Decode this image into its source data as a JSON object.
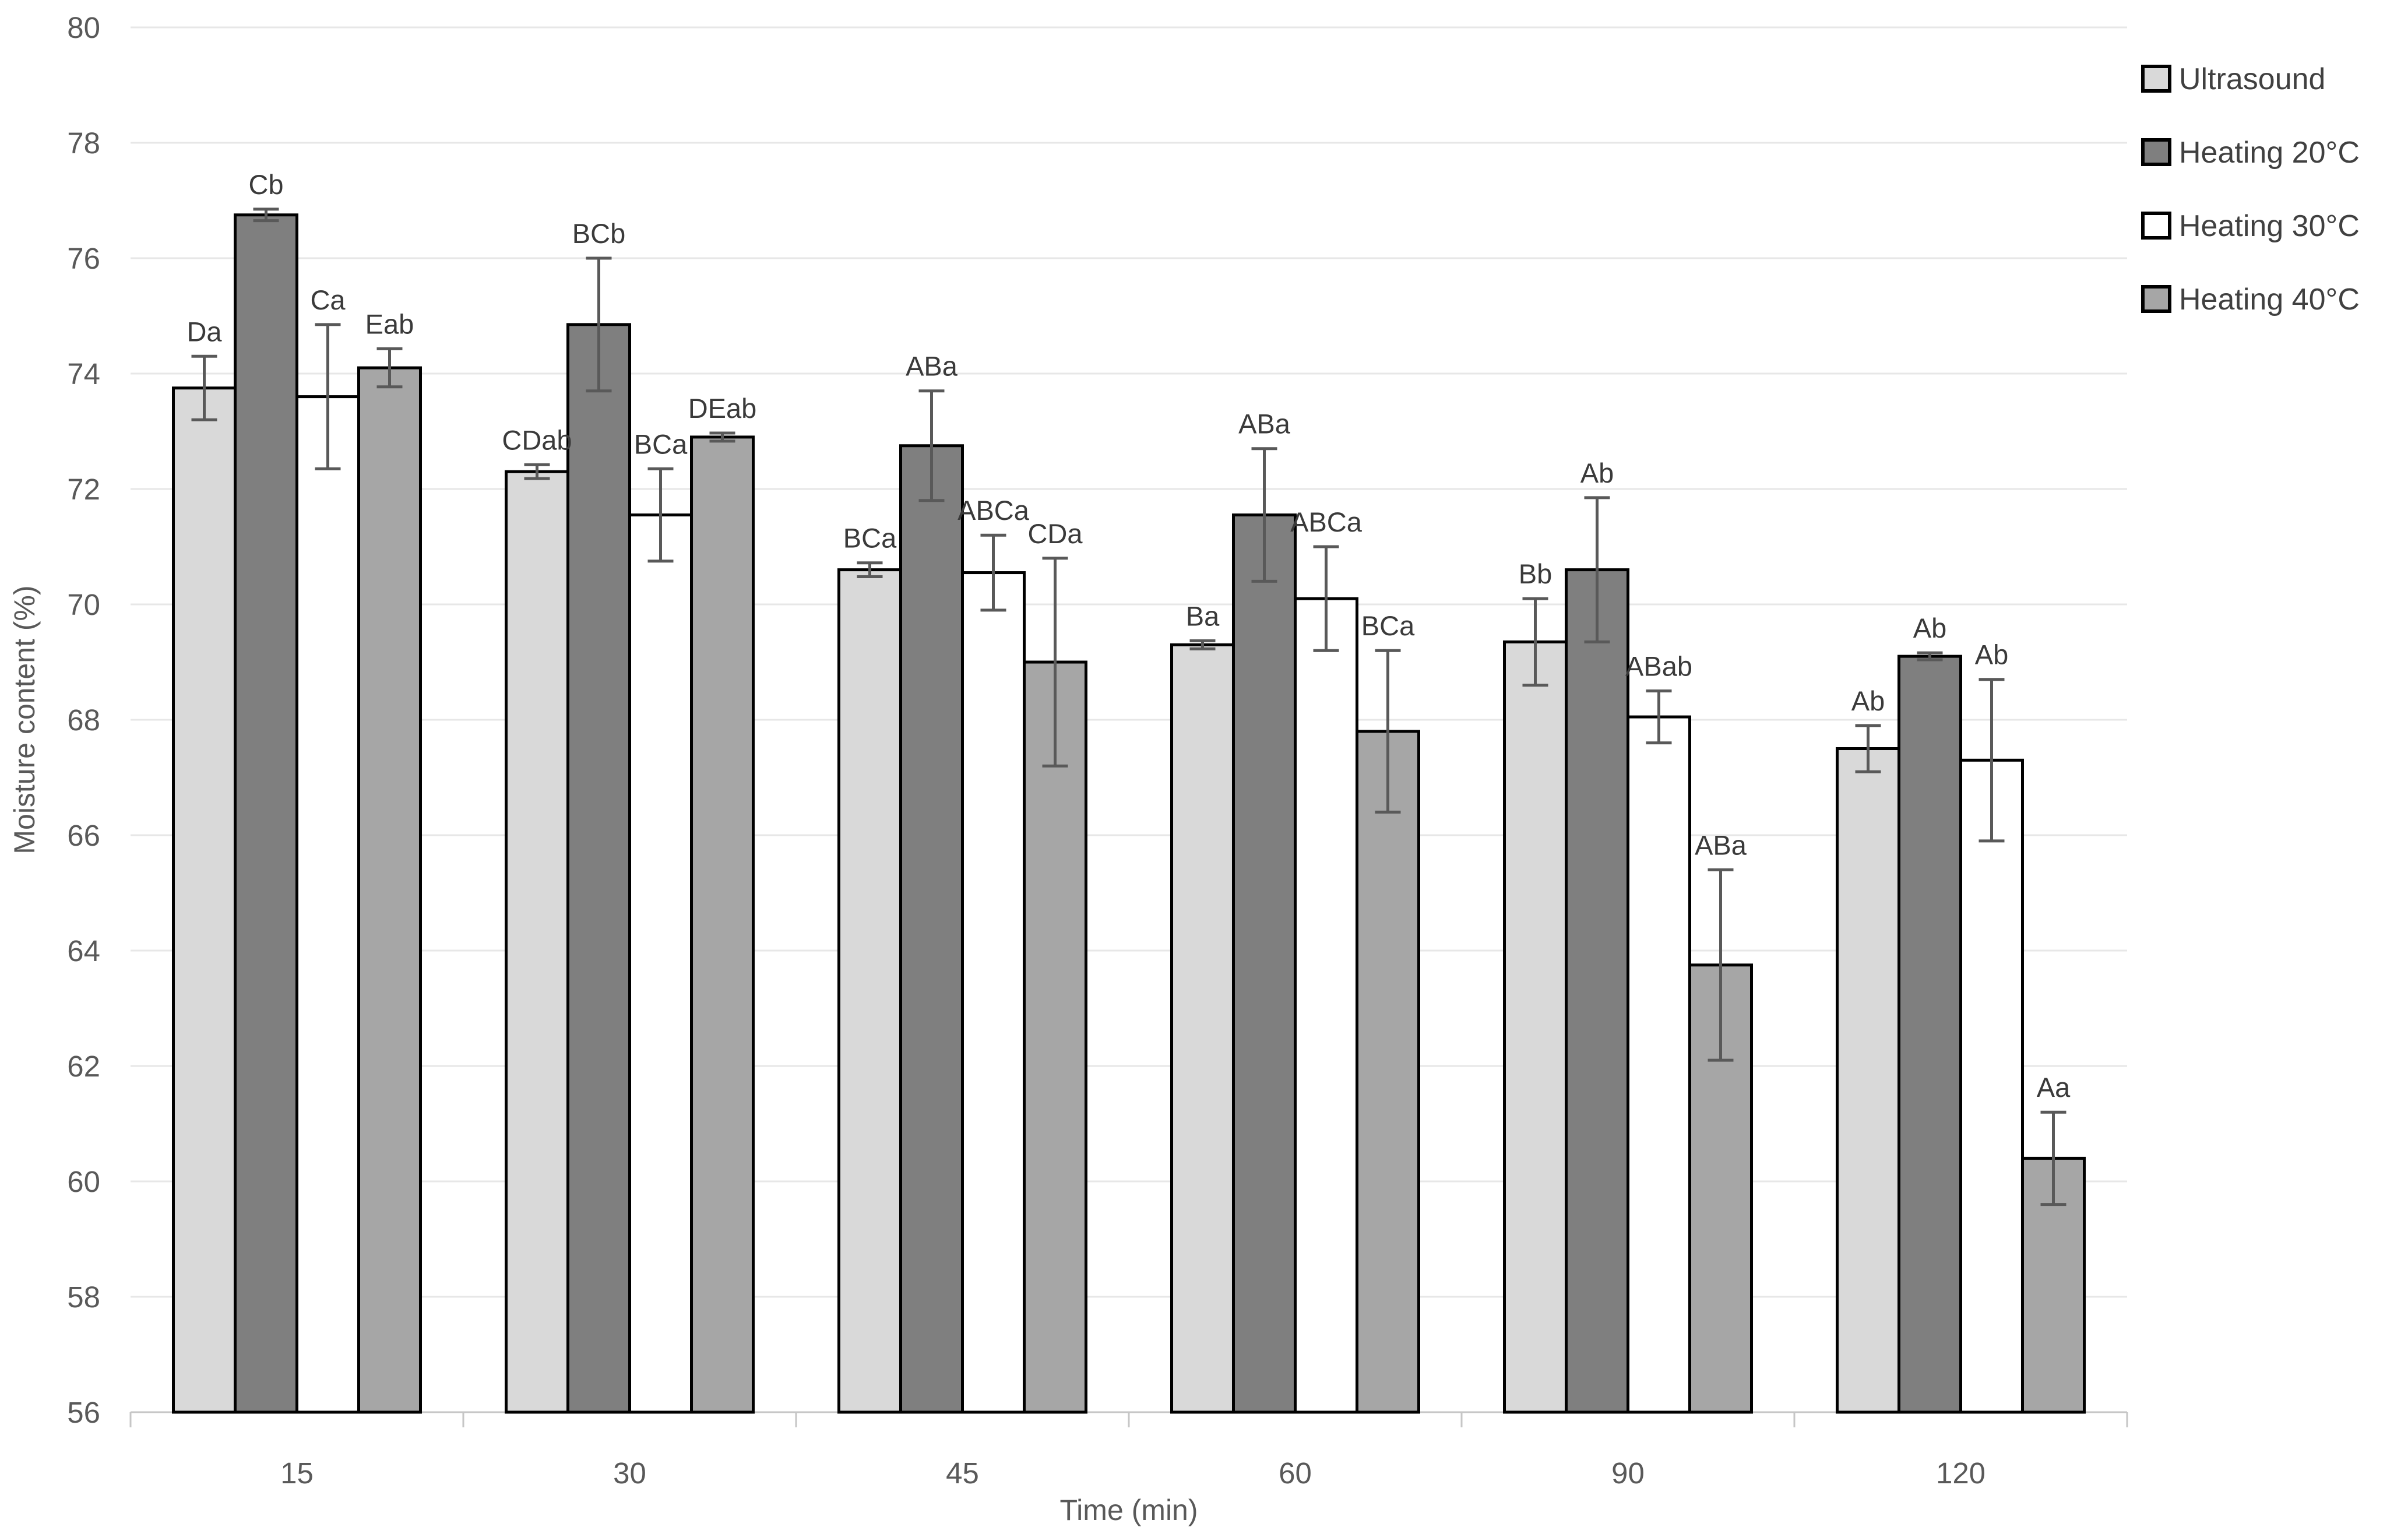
{
  "chart_data": {
    "type": "bar",
    "title": "",
    "xlabel": "Time (min)",
    "ylabel": "Moisture content (%)",
    "categories": [
      "15",
      "30",
      "45",
      "60",
      "90",
      "120"
    ],
    "ylim": [
      56,
      80
    ],
    "ytick_step": 2,
    "grid": true,
    "legend_position": "right",
    "series": [
      {
        "name": "Ultrasound",
        "color": "#d9d9d9",
        "values": [
          73.75,
          72.3,
          70.6,
          69.3,
          69.35,
          67.5
        ],
        "errors": [
          0.55,
          0.12,
          0.12,
          0.07,
          0.75,
          0.4
        ],
        "labels": [
          "Da",
          "CDab",
          "BCa",
          "Ba",
          "Bb",
          "Ab"
        ]
      },
      {
        "name": "Heating 20°C",
        "color": "#7f7f7f",
        "values": [
          76.75,
          74.85,
          72.75,
          71.55,
          70.6,
          69.1
        ],
        "errors": [
          0.1,
          1.15,
          0.95,
          1.15,
          1.25,
          0.06
        ],
        "labels": [
          "Cb",
          "BCb",
          "ABa",
          "ABa",
          "Ab",
          "Ab"
        ]
      },
      {
        "name": "Heating 30°C",
        "color": "#ffffff",
        "values": [
          73.6,
          71.55,
          70.55,
          70.1,
          68.05,
          67.3
        ],
        "errors": [
          1.25,
          0.8,
          0.65,
          0.9,
          0.45,
          1.4
        ],
        "labels": [
          "Ca",
          "BCa",
          "ABCa",
          "ABCa",
          "ABab",
          "Ab"
        ]
      },
      {
        "name": "Heating 40°C",
        "color": "#a6a6a6",
        "values": [
          74.1,
          72.9,
          69.0,
          67.8,
          63.75,
          60.4
        ],
        "errors": [
          0.33,
          0.07,
          1.8,
          1.4,
          1.65,
          0.8
        ],
        "labels": [
          "Eab",
          "DEab",
          "CDa",
          "BCa",
          "ABa",
          "Aa"
        ]
      }
    ]
  },
  "style": {
    "background": "#ffffff",
    "grid_color": "#e7e7e7",
    "baseline_color": "#c6c6c6",
    "tick_color": "#c6c6c6",
    "axis_text_color": "#595959",
    "sig_label_color": "#3a3a3a",
    "legend_text_color": "#404040",
    "error_bar_color": "#595959",
    "bar_border_color": "#000000"
  }
}
